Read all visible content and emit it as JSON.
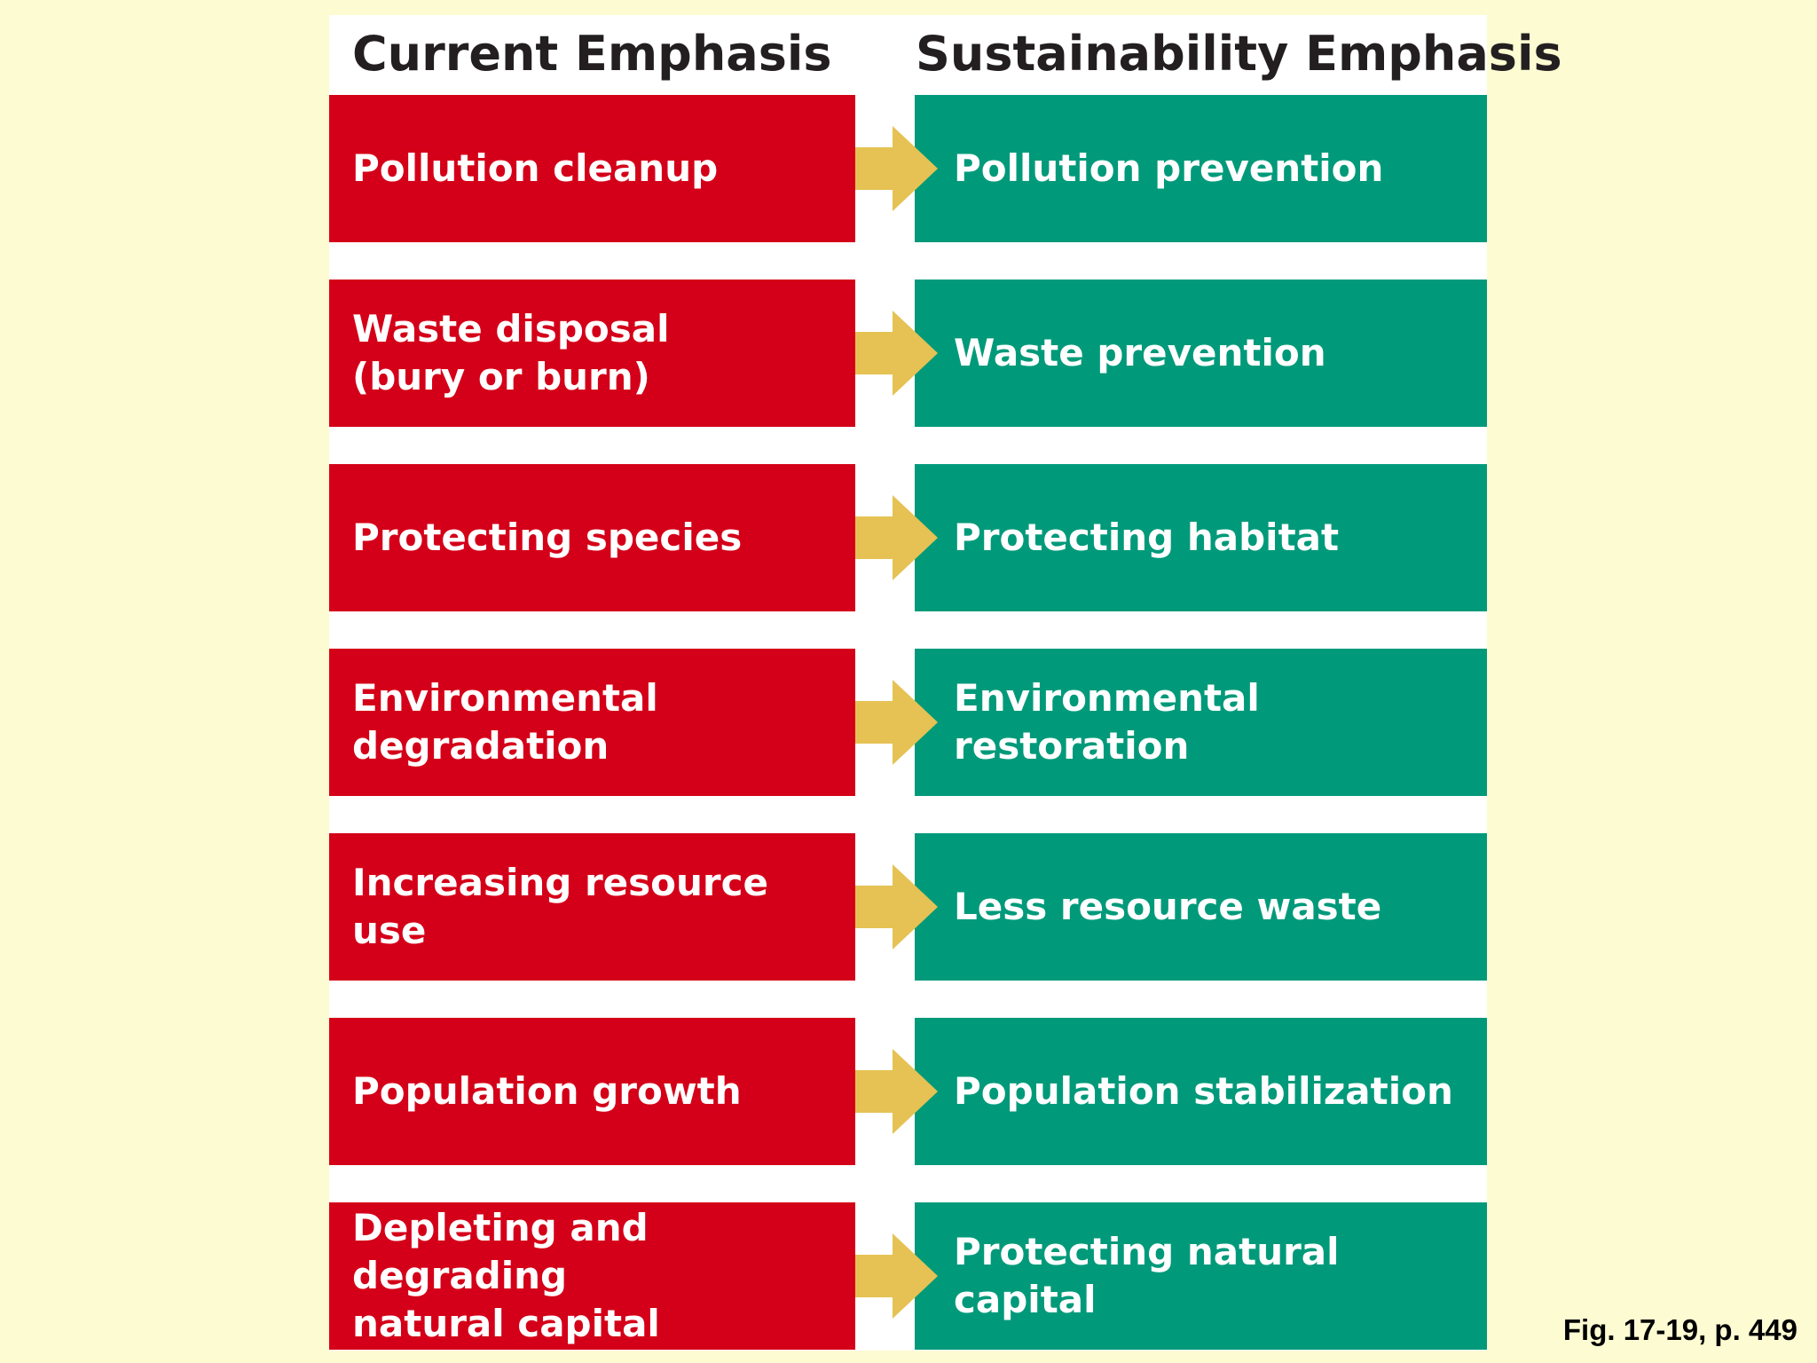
{
  "headers": {
    "current": "Current Emphasis",
    "sustainability": "Sustainability Emphasis"
  },
  "rows": [
    {
      "current": [
        "Pollution cleanup"
      ],
      "sustainability": "Pollution prevention"
    },
    {
      "current": [
        "Waste disposal",
        "(bury or burn)"
      ],
      "sustainability": "Waste prevention"
    },
    {
      "current": [
        "Protecting species"
      ],
      "sustainability": "Protecting habitat"
    },
    {
      "current": [
        "Environmental",
        "degradation"
      ],
      "sustainability": "Environmental restoration"
    },
    {
      "current": [
        "Increasing resource use"
      ],
      "sustainability": "Less resource waste"
    },
    {
      "current": [
        "Population growth"
      ],
      "sustainability": "Population stabilization"
    },
    {
      "current": [
        "Depleting and degrading",
        "natural capital"
      ],
      "sustainability": "Protecting natural capital"
    }
  ],
  "caption": "Fig. 17-19, p. 449",
  "colors": {
    "background": "#fdfbd2",
    "current_box": "#d40019",
    "sustainability_box": "#009a7a",
    "arrow": "#e5c253"
  },
  "icons": {
    "connector": "right-arrow-icon"
  }
}
